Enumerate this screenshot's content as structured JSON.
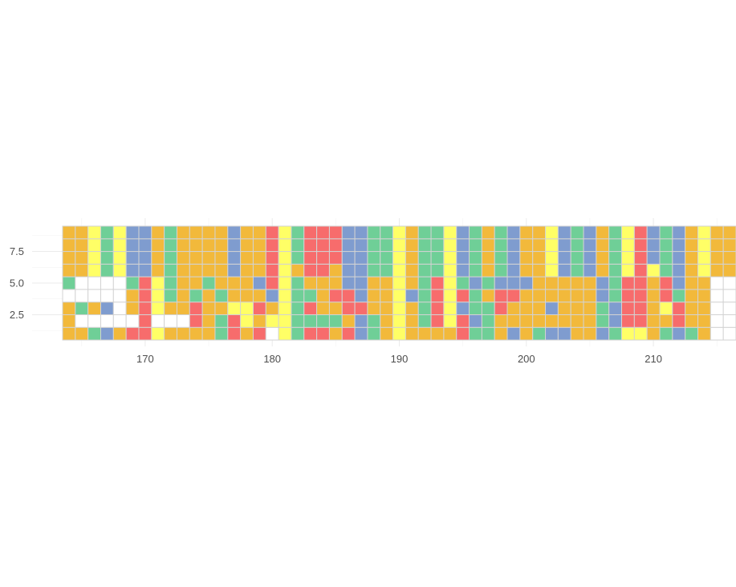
{
  "chart_data": {
    "type": "heatmap",
    "title": "",
    "xlabel": "",
    "ylabel": "",
    "xlim": [
      163.5,
      213.5
    ],
    "ylim": [
      0.5,
      9.5
    ],
    "x_ticks": [
      170,
      180,
      190,
      200,
      210
    ],
    "y_ticks": [
      2.5,
      5.0,
      7.5
    ],
    "x_tick_labels": [
      "170",
      "180",
      "190",
      "200",
      "210"
    ],
    "y_tick_labels": [
      "2.5",
      "5.0",
      "7.5"
    ],
    "grid": true,
    "legend": "none",
    "colors": {
      "O": "#f2b93b",
      "Y": "#ffff66",
      "G": "#6fcf97",
      "B": "#7f9ccf",
      "R": "#f76c6c",
      "W": "#ffffff"
    },
    "x_start": 164,
    "columns": [
      "OOOWGOOOO",
      "OWGWWOOOO",
      "GWOWWYYYY",
      "BWBWWGGGG",
      "OWWWWYYYY",
      "RWOOGBBBB",
      "RRRRRBBBB",
      "YWYYYOOOO",
      "OWOGGGGGG",
      "OWOOOOOOO",
      "ORRGOOOOO",
      "OOOOGOOOO",
      "GGOGOOOOO",
      "RRYOOBBBB",
      "OYYOOOOOO",
      "ROROBOOOO",
      "WYOBRRRRR",
      "YYYYYYYYY",
      "GGGGGOGGG",
      "RGRGORRRR",
      "RGOOORRRR",
      "OGOROORRR",
      "RORRBBBBB",
      "BBRBBBBBB",
      "GGOOOGGGG",
      "OOOOOGGGG",
      "YYYYYYYYY",
      "OOOBOOOOO",
      "OGGGGGGGG",
      "ORRRRGGGG",
      "OYYYYYYYY",
      "RRBRGBBBB",
      "GBGGBGGGG",
      "GGGOGOOOO",
      "OORRBGGGG",
      "BOORBBBBB",
      "OOOOBOOOO",
      "GOOOOOOOO",
      "BOBOOYYYY",
      "BOOOOBBBB",
      "OOOOOGGGG",
      "OOOOOBBBB",
      "BGGBBOOOO",
      "GBBGGGGGG",
      "YRRRRYYYY",
      "YRRRRRRRR",
      "OOOOOYBBB",
      "GOYRRGGGG",
      "BRRGBBBBB",
      "GOOOOOOOO",
      "OOOOOYYYY",
      "WWWWWOOOO",
      "WWWWWOOOO",
      "WWWWWOOOO"
    ]
  }
}
